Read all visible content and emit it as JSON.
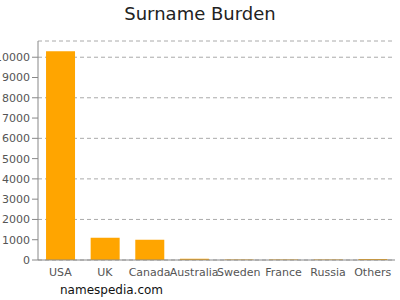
{
  "chart_data": {
    "type": "bar",
    "title": "Surname Burden",
    "annotation": "namespedia.com",
    "categories": [
      "USA",
      "UK",
      "Canada",
      "Australia",
      "Sweden",
      "France",
      "Russia",
      "Others"
    ],
    "values": [
      10300,
      1100,
      1000,
      60,
      20,
      20,
      20,
      50
    ],
    "color": "#ffa500",
    "ylim": [
      0,
      10800
    ],
    "yticks": [
      0,
      1000,
      2000,
      3000,
      4000,
      5000,
      6000,
      7000,
      8000,
      9000,
      10000
    ],
    "grid": true
  }
}
